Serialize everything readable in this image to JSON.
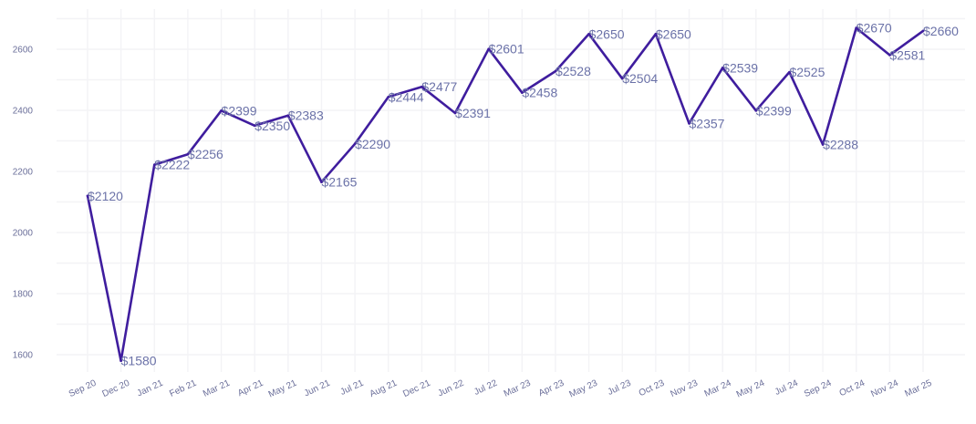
{
  "chart_data": {
    "type": "line",
    "title": "",
    "xlabel": "",
    "ylabel": "",
    "categories": [
      "Sep 20",
      "Dec 20",
      "Jan 21",
      "Feb 21",
      "Mar 21",
      "Apr 21",
      "May 21",
      "Jun 21",
      "Jul 21",
      "Aug 21",
      "Dec 21",
      "Jun 22",
      "Jul 22",
      "Mar 23",
      "Apr 23",
      "May 23",
      "Jul 23",
      "Oct 23",
      "Nov 23",
      "Mar 24",
      "May 24",
      "Jul 24",
      "Sep 24",
      "Oct 24",
      "Nov 24",
      "Mar 25"
    ],
    "values": [
      2120,
      1580,
      2222,
      2256,
      2399,
      2350,
      2383,
      2165,
      2290,
      2444,
      2477,
      2391,
      2601,
      2458,
      2528,
      2650,
      2504,
      2650,
      2357,
      2539,
      2399,
      2525,
      2288,
      2670,
      2581,
      2660
    ],
    "data_labels": [
      "$2120",
      "$1580",
      "$2222",
      "$2256",
      "$2399",
      "$2350",
      "$2383",
      "$2165",
      "$2290",
      "$2444",
      "$2477",
      "$2391",
      "$2601",
      "$2458",
      "$2528",
      "$2650",
      "$2504",
      "$2650",
      "$2357",
      "$2539",
      "$2399",
      "$2525",
      "$2288",
      "$2670",
      "$2581",
      "$2660"
    ],
    "yticks": [
      1600,
      1800,
      2000,
      2200,
      2400,
      2600
    ],
    "ylim": [
      1520,
      2720
    ],
    "grid": true,
    "legend": "none",
    "line_color": "#3f1d9e",
    "label_color": "#6b72a8"
  }
}
